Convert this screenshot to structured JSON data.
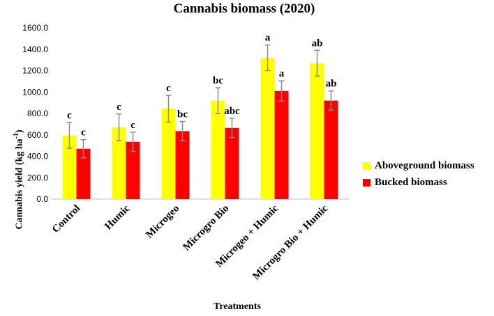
{
  "chart_data": {
    "type": "bar",
    "title": "Cannabis biomass (2020)",
    "xlabel": "Treatments",
    "ylabel_main": "Cannabis yield (kg ha",
    "ylabel_sup": "-1",
    "ylabel_tail": ")",
    "ylim": [
      0,
      1600
    ],
    "yticks": [
      "0.0",
      "200.0",
      "400.0",
      "600.0",
      "800.0",
      "1000.0",
      "1200.0",
      "1400.0",
      "1600.0"
    ],
    "grid": false,
    "legend_position": "right",
    "categories": [
      "Control",
      "Humic",
      "Microgeo",
      "Microgro Bio",
      "Microgeo + Humic",
      "Microgro Bio + Humic"
    ],
    "series": [
      {
        "name": "Aboveground biomass",
        "color": "#FFFF00",
        "values": [
          595,
          670,
          845,
          920,
          1320,
          1270
        ],
        "errors": [
          120,
          125,
          125,
          120,
          120,
          120
        ],
        "labels": [
          "c",
          "c",
          "c",
          "bc",
          "a",
          "ab"
        ]
      },
      {
        "name": "Bucked biomass",
        "color": "#FF0000",
        "values": [
          470,
          535,
          635,
          665,
          1010,
          920
        ],
        "errors": [
          85,
          90,
          90,
          90,
          95,
          90
        ],
        "labels": [
          "c",
          "c",
          "bc",
          "abc",
          "a",
          "ab"
        ]
      }
    ]
  }
}
